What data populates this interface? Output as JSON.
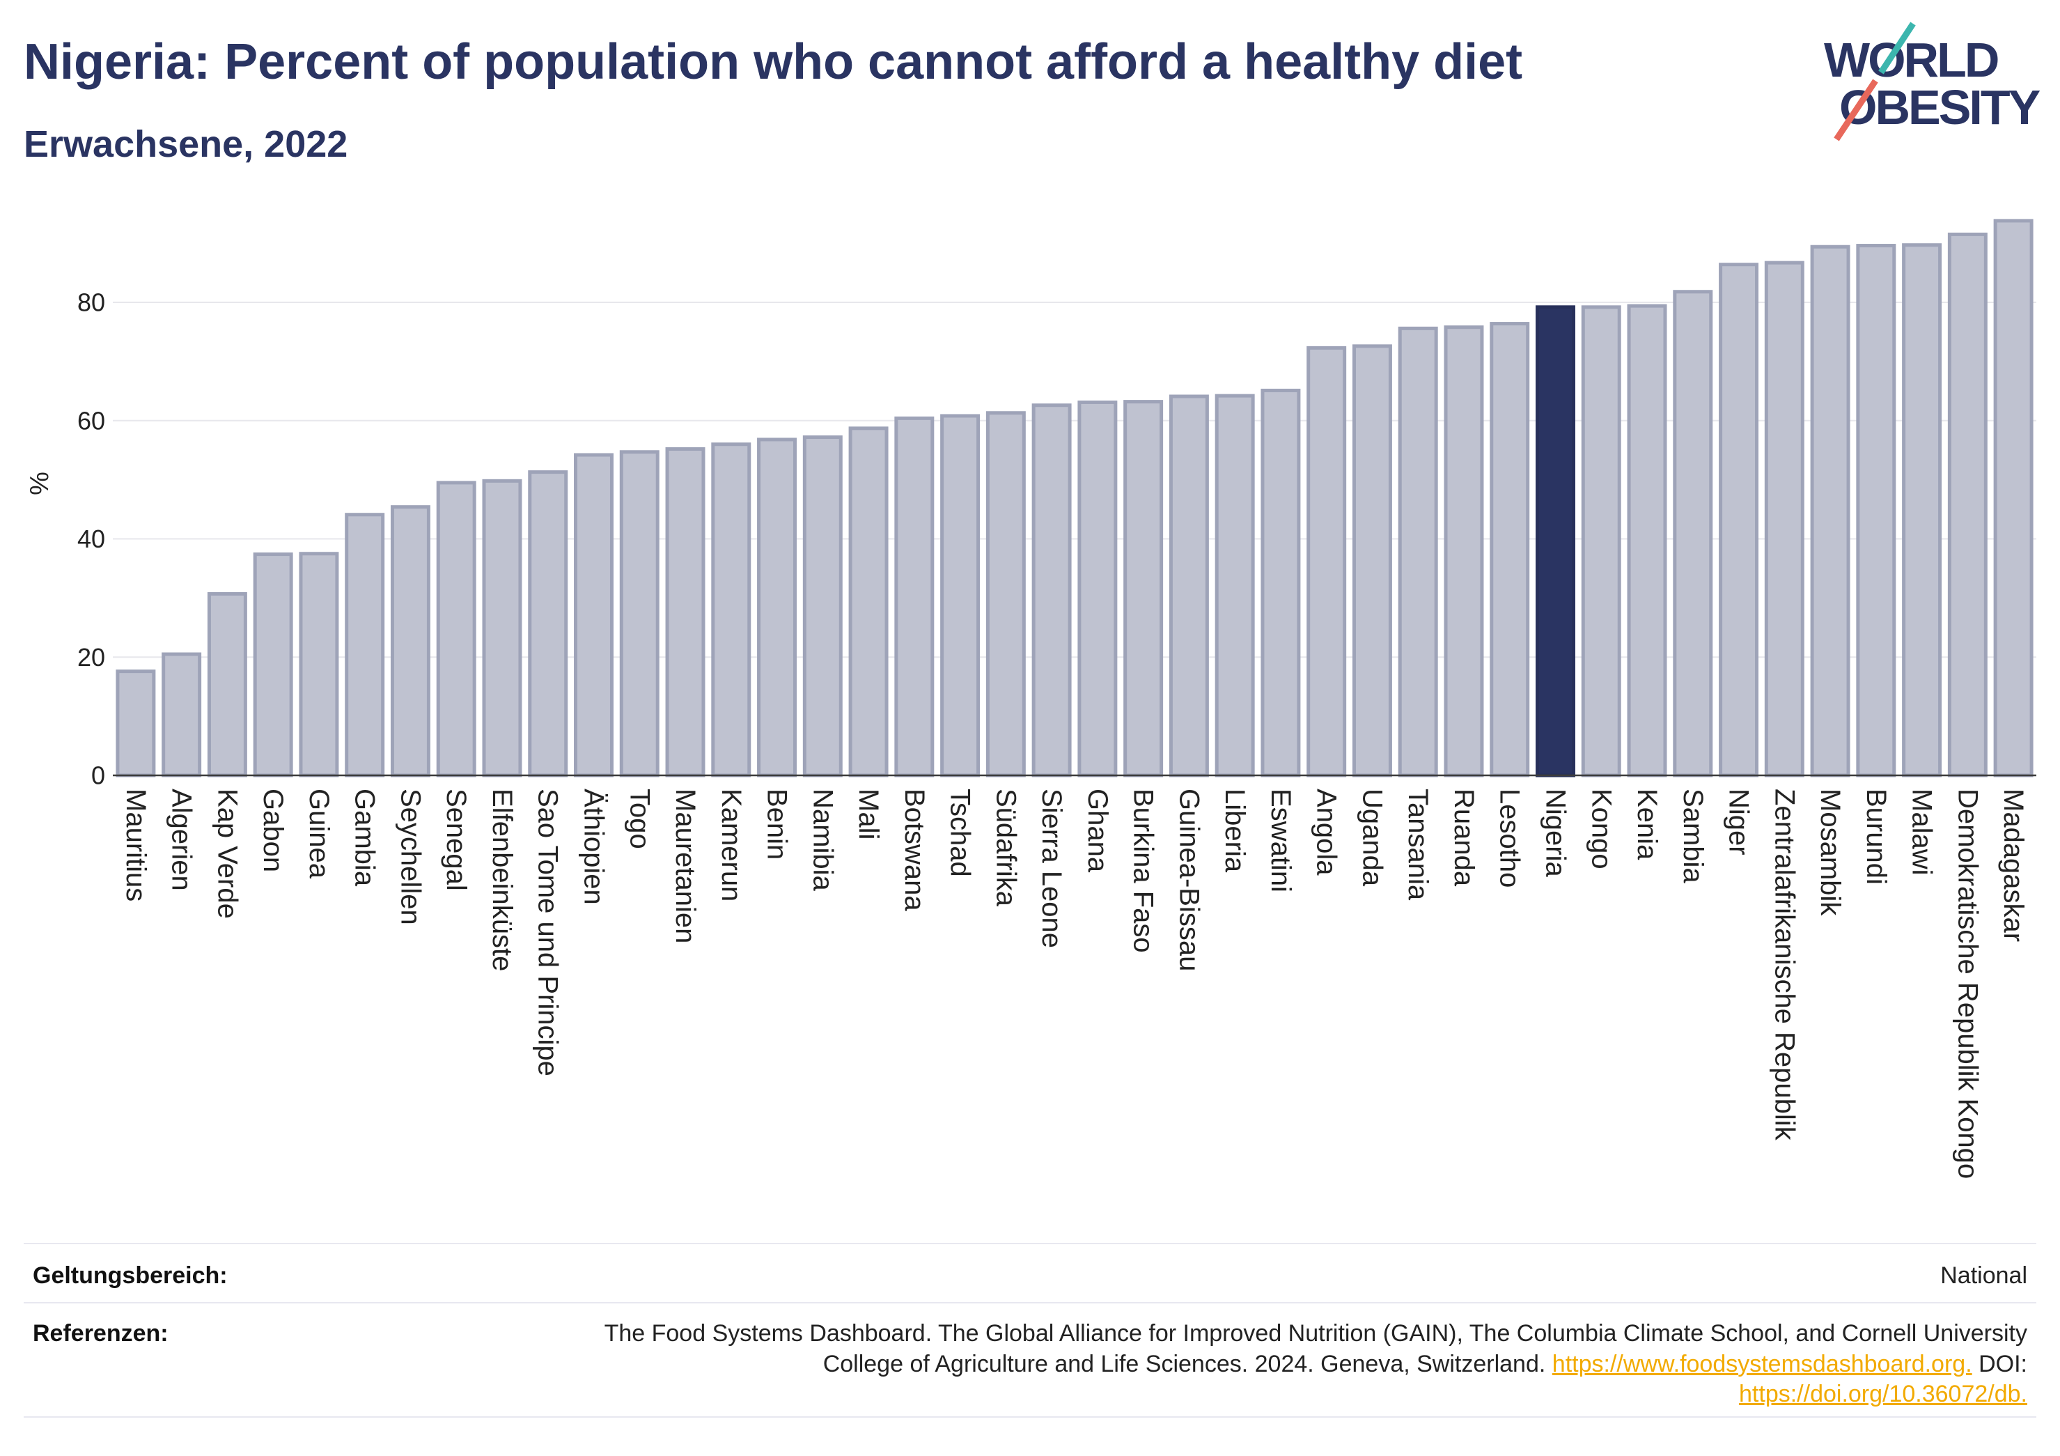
{
  "colors": {
    "brand_navy": "#2a3462",
    "link": "#f2aa00",
    "logo_teal": "#3cb6ae",
    "logo_coral": "#e8685b"
  },
  "logo": {
    "line_1": "WORLD",
    "line_2": "OBESITY"
  },
  "chart_data": {
    "type": "bar",
    "title": "Nigeria: Percent of population who cannot afford a healthy diet",
    "subtitle": "Erwachsene, 2022",
    "ylabel": "%",
    "ylim": [
      0,
      98.5
    ],
    "yticks": [
      0,
      20,
      40,
      60,
      80
    ],
    "grid": true,
    "highlight": "Nigeria",
    "categories": [
      "Mauritius",
      "Algerien",
      "Kap Verde",
      "Gabon",
      "Guinea",
      "Gambia",
      "Seychellen",
      "Senegal",
      "Elfenbeinküste",
      "Sao Tome und Principe",
      "Äthiopien",
      "Togo",
      "Mauretanien",
      "Kamerun",
      "Benin",
      "Namibia",
      "Mali",
      "Botswana",
      "Tschad",
      "Südafrika",
      "Sierra Leone",
      "Ghana",
      "Burkina Faso",
      "Guinea-Bissau",
      "Liberia",
      "Eswatini",
      "Angola",
      "Uganda",
      "Tansania",
      "Ruanda",
      "Lesotho",
      "Nigeria",
      "Kongo",
      "Kenia",
      "Sambia",
      "Niger",
      "Zentralafrikanische Republik",
      "Mosambik",
      "Burundi",
      "Malawi",
      "Demokratische Republik Kongo",
      "Madagaskar"
    ],
    "values": [
      17.6,
      20.5,
      30.7,
      37.4,
      37.5,
      44.1,
      45.4,
      49.5,
      49.8,
      51.3,
      54.2,
      54.7,
      55.2,
      56.0,
      56.8,
      57.2,
      58.7,
      60.4,
      60.8,
      61.3,
      62.6,
      63.1,
      63.2,
      64.1,
      64.2,
      65.1,
      72.3,
      72.6,
      75.6,
      75.8,
      76.4,
      79.2,
      79.2,
      79.4,
      81.8,
      86.4,
      86.7,
      89.4,
      89.6,
      89.7,
      91.5,
      93.8
    ],
    "colors": {
      "bar_fill": "#bfc2d0",
      "bar_stroke": "#9ea3b8",
      "highlight_fill": "#2a3462",
      "highlight_stroke": "#27305a",
      "grid": "#e7e7ec",
      "axis": "#3c3c3c"
    }
  },
  "footer": {
    "scope": {
      "label": "Geltungsbereich:",
      "value": "National"
    },
    "references": {
      "label": "Referenzen:",
      "line_1": "The Food Systems Dashboard. The Global Alliance for Improved Nutrition (GAIN), The Columbia Climate School, and Cornell University",
      "line_2": "College of Agriculture and Life Sciences. 2024. Geneva, Switzerland.",
      "link_1": "https://www.foodsystemsdashboard.org.",
      "line_2_end": "DOI:",
      "link_2": "https://doi.org/10.36072/db."
    }
  }
}
